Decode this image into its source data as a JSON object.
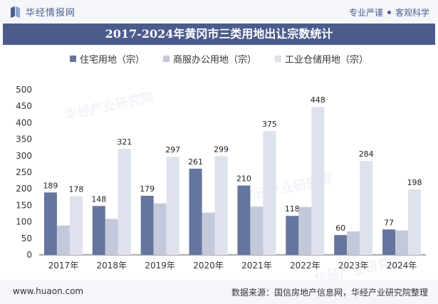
{
  "header": {
    "brand": "华经情报网",
    "tagline_left": "专业严谨",
    "tagline_right": "客观科学"
  },
  "watermarks": [
    "华经产业研究院",
    "华经产业研究院",
    "华经产业研究院"
  ],
  "footer": {
    "url": "www.huaon.com",
    "source": "数据来源：国信房地产信息网，华经产业研究院整理"
  },
  "chart_data": {
    "type": "bar",
    "title": "2017-2024年黄冈市三类用地出让宗数统计",
    "categories": [
      "2017年",
      "2018年",
      "2019年",
      "2020年",
      "2021年",
      "2022年",
      "2023年",
      "2024年"
    ],
    "ylim": [
      0,
      500
    ],
    "yticks": [
      0,
      50,
      100,
      150,
      200,
      250,
      300,
      350,
      400,
      450,
      500
    ],
    "grid": false,
    "legend_position": "top",
    "series": [
      {
        "name": "住宅用地（宗）",
        "color": "#66759e",
        "values": [
          189,
          148,
          179,
          261,
          210,
          118,
          60,
          77
        ],
        "show_labels": true
      },
      {
        "name": "商服办公用地（宗）",
        "color": "#c3c9da",
        "values": [
          89,
          109,
          156,
          128,
          146,
          145,
          71,
          74
        ],
        "show_labels": false
      },
      {
        "name": "工业仓储用地（宗）",
        "color": "#dde2ec",
        "values": [
          178,
          321,
          297,
          299,
          375,
          448,
          284,
          198
        ],
        "show_labels": true
      }
    ]
  }
}
